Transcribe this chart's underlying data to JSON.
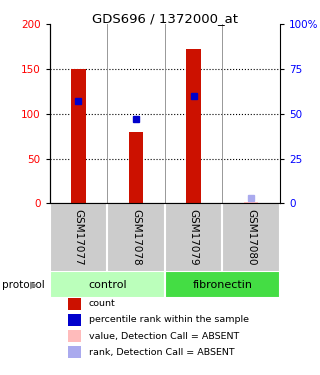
{
  "title": "GDS696 / 1372000_at",
  "samples": [
    "GSM17077",
    "GSM17078",
    "GSM17079",
    "GSM17080"
  ],
  "bar_values": [
    150,
    80,
    172,
    2
  ],
  "bar_colors": [
    "#cc1100",
    "#cc1100",
    "#cc1100",
    "#ffbbbb"
  ],
  "rank_values": [
    57,
    47,
    60,
    3
  ],
  "rank_colors": [
    "#0000cc",
    "#0000cc",
    "#0000cc",
    "#aaaaee"
  ],
  "groups": [
    {
      "label": "control",
      "start": 0,
      "end": 2
    },
    {
      "label": "fibronectin",
      "start": 2,
      "end": 4
    }
  ],
  "group_colors_fill": [
    "#bbffbb",
    "#44dd44"
  ],
  "protocol_label": "protocol",
  "ylim_left": [
    0,
    200
  ],
  "ylim_right": [
    0,
    100
  ],
  "yticks_left": [
    0,
    50,
    100,
    150,
    200
  ],
  "yticks_right": [
    0,
    25,
    50,
    75,
    100
  ],
  "ytick_labels_right": [
    "0",
    "25",
    "50",
    "75",
    "100%"
  ],
  "absent_bar_color": "#ffbbbb",
  "absent_rank_color": "#aaaaee",
  "legend_items": [
    {
      "label": "count",
      "color": "#cc1100"
    },
    {
      "label": "percentile rank within the sample",
      "color": "#0000cc"
    },
    {
      "label": "value, Detection Call = ABSENT",
      "color": "#ffbbbb"
    },
    {
      "label": "rank, Detection Call = ABSENT",
      "color": "#aaaaee"
    }
  ]
}
